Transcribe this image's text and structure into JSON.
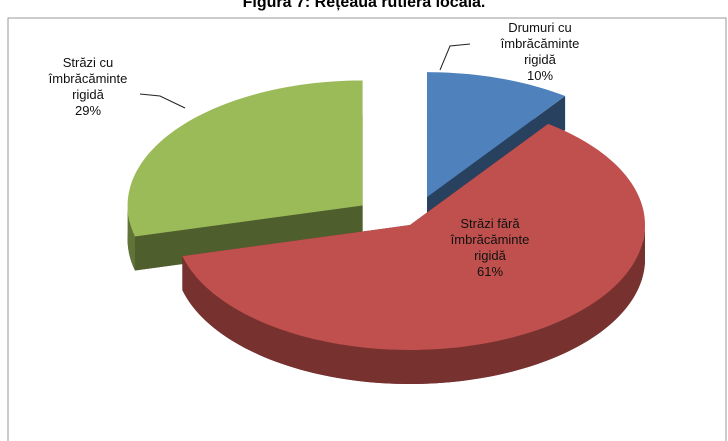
{
  "chart_data": {
    "type": "pie3d",
    "title": "Figura 7: Rețeaua rutieră locală.",
    "categories": [
      "Drumuri cu îmbrăcăminte rigidă",
      "Străzi fără îmbrăcăminte rigidă",
      "Străzi cu îmbrăcăminte rigidă"
    ],
    "values": [
      10,
      61,
      29
    ],
    "value_labels": [
      "10%",
      "61%",
      "29%"
    ],
    "colors": [
      "#4f81bd",
      "#c0504d",
      "#9bbb59"
    ]
  }
}
